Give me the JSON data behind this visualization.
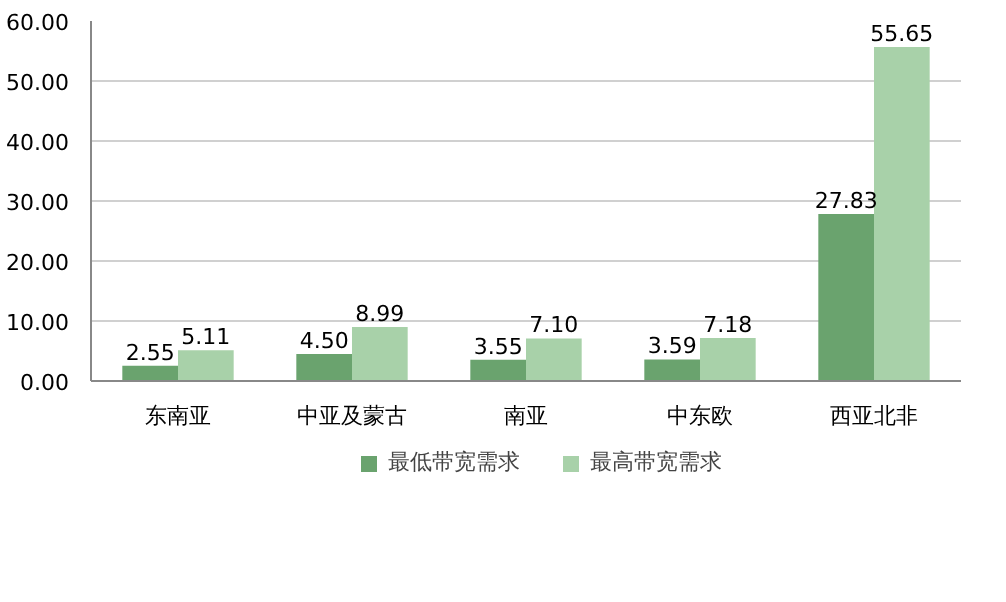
{
  "chart_data": {
    "type": "bar",
    "categories": [
      "东南亚",
      "中亚及蒙古",
      "南亚",
      "中东欧",
      "西亚北非"
    ],
    "series": [
      {
        "name": "最低带宽需求",
        "color": "#6aa36e",
        "values": [
          2.55,
          4.5,
          3.55,
          3.59,
          27.83
        ],
        "value_labels": [
          "2.55",
          "4.50",
          "3.55",
          "3.59",
          "27.83"
        ]
      },
      {
        "name": "最高带宽需求",
        "color": "#a8d1a9",
        "values": [
          5.11,
          8.99,
          7.1,
          7.18,
          55.65
        ],
        "value_labels": [
          "5.11",
          "8.99",
          "7.10",
          "7.18",
          "55.65"
        ]
      }
    ],
    "ylim": [
      0,
      60
    ],
    "yticks": [
      {
        "value": 0,
        "label": "0.00"
      },
      {
        "value": 10,
        "label": "10.00"
      },
      {
        "value": 20,
        "label": "20.00"
      },
      {
        "value": 30,
        "label": "30.00"
      },
      {
        "value": 40,
        "label": "40.00"
      },
      {
        "value": 50,
        "label": "50.00"
      },
      {
        "value": 60,
        "label": "60.00"
      }
    ],
    "grid": "y",
    "legend": "bottom"
  }
}
